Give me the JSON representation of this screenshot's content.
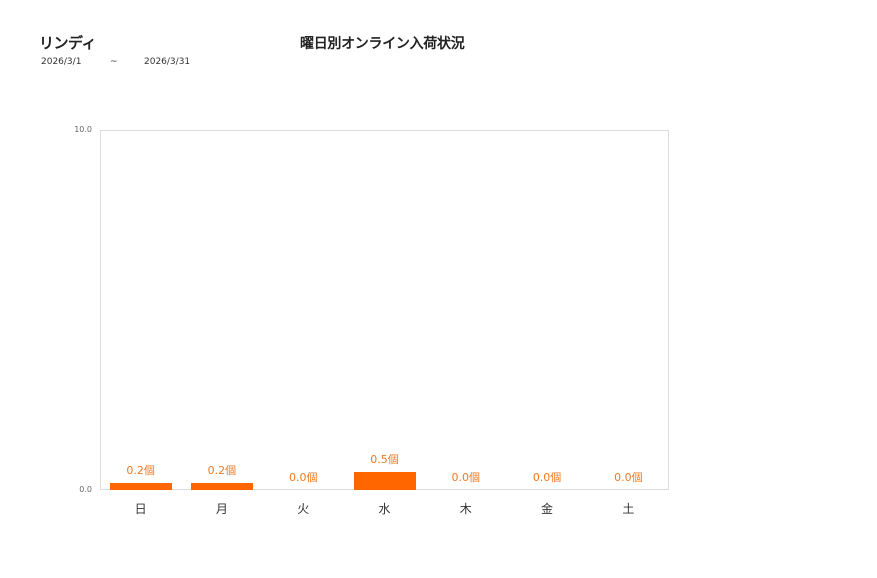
{
  "header": {
    "store_name": "リンディ",
    "date_from": "2026/3/1",
    "date_separator": "~",
    "date_to": "2026/3/31"
  },
  "chart_data": {
    "type": "bar",
    "title": "曜日別オンライン入荷状況",
    "categories": [
      "日",
      "月",
      "火",
      "水",
      "木",
      "金",
      "土"
    ],
    "values": [
      0.2,
      0.2,
      0.0,
      0.5,
      0.0,
      0.0,
      0.0
    ],
    "value_labels": [
      "0.2個",
      "0.2個",
      "0.0個",
      "0.5個",
      "0.0個",
      "0.0個",
      "0.0個"
    ],
    "unit": "個",
    "xlabel": "",
    "ylabel": "",
    "ylim": [
      0,
      10
    ],
    "y_ticks": [
      "0.0",
      "10.0"
    ],
    "grid": false,
    "legend": "none",
    "bar_color": "#ff6600",
    "label_color": "#f07a20"
  }
}
